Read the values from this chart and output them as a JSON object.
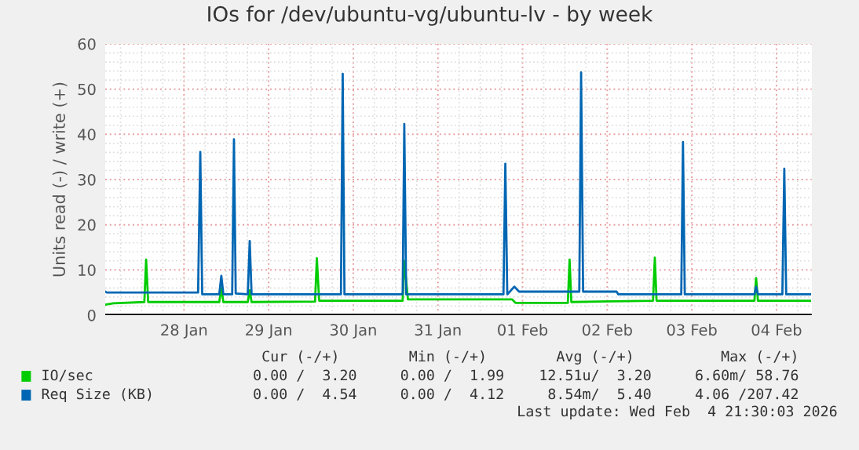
{
  "chart_data": {
    "type": "line",
    "title": "IOs for /dev/ubuntu-vg/ubuntu-lv - by week",
    "ylabel": "Units read (-) / write (+)",
    "xlim": [
      "2026-01-27T01:40",
      "2026-02-04T10:00"
    ],
    "xticks": [
      {
        "value": "2026-01-28",
        "label": "28 Jan"
      },
      {
        "value": "2026-01-29",
        "label": "29 Jan"
      },
      {
        "value": "2026-01-30",
        "label": "30 Jan"
      },
      {
        "value": "2026-01-31",
        "label": "31 Jan"
      },
      {
        "value": "2026-02-01",
        "label": "01 Feb"
      },
      {
        "value": "2026-02-02",
        "label": "02 Feb"
      },
      {
        "value": "2026-02-03",
        "label": "03 Feb"
      },
      {
        "value": "2026-02-04",
        "label": "04 Feb"
      }
    ],
    "ylim": [
      0,
      60
    ],
    "yticks": [
      0,
      10,
      20,
      30,
      40,
      50,
      60
    ],
    "grid": true,
    "legend": "bottom",
    "series": [
      {
        "name": "IO/sec",
        "color": "#00cc00",
        "x": [
          "2026-01-27T01:40",
          "2026-01-27T04:00",
          "2026-01-27T12:45",
          "2026-01-27T13:16",
          "2026-01-27T13:50",
          "2026-01-28T10:00",
          "2026-01-28T10:35",
          "2026-01-28T11:10",
          "2026-01-28T18:05",
          "2026-01-28T18:38",
          "2026-01-28T19:10",
          "2026-01-29T13:10",
          "2026-01-29T13:40",
          "2026-01-29T14:20",
          "2026-01-30T14:00",
          "2026-01-30T14:28",
          "2026-01-30T15:30",
          "2026-01-31T21:00",
          "2026-01-31T22:00",
          "2026-02-01T12:50",
          "2026-02-01T13:20",
          "2026-02-01T13:50",
          "2026-02-02T13:00",
          "2026-02-02T13:30",
          "2026-02-02T14:00",
          "2026-02-03T17:45",
          "2026-02-03T18:13",
          "2026-02-03T18:45",
          "2026-02-04T09:30"
        ],
        "values": [
          2.3,
          2.6,
          2.9,
          12.3,
          2.9,
          2.9,
          6.0,
          2.9,
          2.9,
          5.5,
          2.9,
          3.0,
          12.6,
          3.2,
          3.2,
          12.0,
          3.5,
          3.5,
          2.7,
          2.7,
          12.3,
          2.9,
          3.2,
          12.7,
          3.2,
          3.2,
          8.2,
          3.2,
          3.2
        ]
      },
      {
        "name": "Req Size (KB)",
        "color": "#0066b3",
        "x": [
          "2026-01-27T01:40",
          "2026-01-27T02:10",
          "2026-01-28T04:00",
          "2026-01-28T04:37",
          "2026-01-28T05:10",
          "2026-01-28T10:00",
          "2026-01-28T10:35",
          "2026-01-28T11:10",
          "2026-01-28T13:40",
          "2026-01-28T14:10",
          "2026-01-28T14:40",
          "2026-01-28T18:05",
          "2026-01-28T18:38",
          "2026-01-28T19:10",
          "2026-01-29T20:30",
          "2026-01-29T21:00",
          "2026-01-29T21:30",
          "2026-01-30T14:00",
          "2026-01-30T14:28",
          "2026-01-30T15:00",
          "2026-01-31T18:35",
          "2026-01-31T19:07",
          "2026-01-31T19:40",
          "2026-01-31T21:40",
          "2026-01-31T23:00",
          "2026-02-01T16:05",
          "2026-02-01T16:36",
          "2026-02-01T17:10",
          "2026-02-02T02:40",
          "2026-02-02T03:10",
          "2026-02-02T21:00",
          "2026-02-02T21:29",
          "2026-02-02T22:00",
          "2026-02-03T17:45",
          "2026-02-03T18:13",
          "2026-02-03T18:45",
          "2026-02-04T01:40",
          "2026-02-04T02:13",
          "2026-02-04T02:45",
          "2026-02-04T09:30"
        ],
        "values": [
          5.2,
          5.0,
          5.0,
          36.1,
          4.6,
          4.6,
          8.7,
          4.6,
          4.6,
          38.9,
          4.8,
          4.6,
          16.4,
          4.6,
          4.6,
          53.4,
          4.6,
          4.6,
          42.3,
          4.6,
          4.6,
          33.5,
          4.6,
          6.3,
          5.2,
          5.2,
          53.7,
          5.2,
          5.2,
          4.6,
          4.6,
          38.3,
          4.6,
          4.6,
          6.3,
          4.6,
          4.6,
          32.4,
          4.6,
          4.6
        ]
      }
    ],
    "annotations": [
      "Cur (-/+)        Min (-/+)        Avg (-/+)          Max (-/+)",
      "0.00 /  3.20     0.00 /  1.99    12.51u/  3.20     6.60m/ 58.76",
      "0.00 /  4.54     0.00 /  4.12     8.54m/  5.40     4.06 /207.42",
      "Last update: Wed Feb  4 21:30:03 2026"
    ]
  }
}
